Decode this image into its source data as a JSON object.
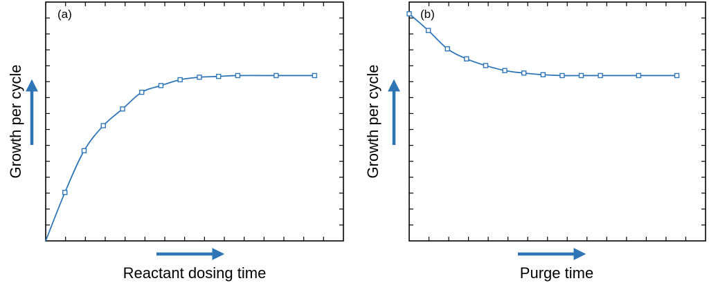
{
  "accent_color": "#2e75b6",
  "chart_data": [
    {
      "type": "line",
      "panel_label": "(a)",
      "xlabel": "Reactant dosing time",
      "ylabel": "Growth per cycle",
      "x": [
        0,
        1,
        2,
        3,
        4,
        5,
        6,
        7,
        8,
        9,
        10,
        12,
        14
      ],
      "values": [
        0.0,
        0.29,
        0.54,
        0.69,
        0.79,
        0.89,
        0.93,
        0.965,
        0.98,
        0.985,
        0.99,
        0.99,
        0.99
      ],
      "marker_start_index": 1,
      "ylim": [
        0,
        1.43
      ],
      "xlim": [
        0,
        15.5
      ],
      "grid": false,
      "marker": "open-square",
      "color": "#2e75b6",
      "x_arrow": true,
      "y_arrow": true
    },
    {
      "type": "line",
      "panel_label": "(b)",
      "xlabel": "Purge time",
      "ylabel": "Growth per cycle",
      "x": [
        0,
        1,
        2,
        3,
        4,
        5,
        6,
        7,
        8,
        9,
        10,
        12,
        14
      ],
      "values": [
        1.36,
        1.26,
        1.15,
        1.09,
        1.05,
        1.02,
        1.005,
        0.995,
        0.99,
        0.99,
        0.99,
        0.99,
        0.99
      ],
      "marker_start_index": 0,
      "ylim": [
        0,
        1.43
      ],
      "xlim": [
        0,
        15.5
      ],
      "grid": false,
      "marker": "open-square",
      "color": "#2e75b6",
      "x_arrow": true,
      "y_arrow": true
    }
  ]
}
